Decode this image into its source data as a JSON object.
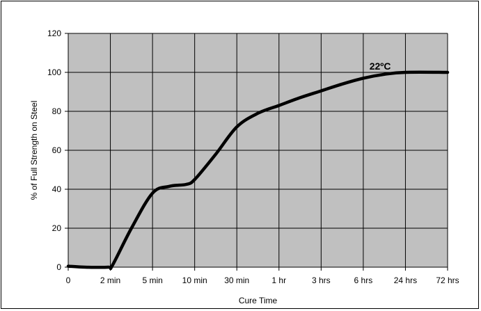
{
  "chart_data": {
    "type": "line",
    "xlabel": "Cure Time",
    "ylabel": "% of Full Strength on Steel",
    "ylim": [
      0,
      120
    ],
    "yticks": [
      0,
      20,
      40,
      60,
      80,
      100,
      120
    ],
    "x_categories": [
      "0",
      "2 min",
      "5 min",
      "10 min",
      "30 min",
      "1 hr",
      "3 hrs",
      "6 hrs",
      "24 hrs",
      "72 hrs"
    ],
    "grid": true,
    "plot_background": "#c0c0c0",
    "line_color": "#000000",
    "series": [
      {
        "name": "22ºC",
        "points": [
          {
            "x": 0,
            "y": 0.5
          },
          {
            "x": 0.4,
            "y": 0
          },
          {
            "x": 0.95,
            "y": 0
          },
          {
            "x": 1.05,
            "y": 1
          },
          {
            "x": 1.5,
            "y": 20
          },
          {
            "x": 2.0,
            "y": 38
          },
          {
            "x": 2.4,
            "y": 41.5
          },
          {
            "x": 2.8,
            "y": 42.5
          },
          {
            "x": 3.0,
            "y": 45
          },
          {
            "x": 3.5,
            "y": 58
          },
          {
            "x": 4.0,
            "y": 72
          },
          {
            "x": 4.5,
            "y": 79
          },
          {
            "x": 5.0,
            "y": 83
          },
          {
            "x": 5.5,
            "y": 87
          },
          {
            "x": 6.0,
            "y": 90.5
          },
          {
            "x": 6.5,
            "y": 94
          },
          {
            "x": 7.0,
            "y": 97
          },
          {
            "x": 7.5,
            "y": 99
          },
          {
            "x": 8.0,
            "y": 100
          },
          {
            "x": 9.0,
            "y": 100
          }
        ]
      }
    ],
    "annotations": [
      {
        "text": "22ºC",
        "x": 7.4,
        "y": 101.5
      }
    ]
  }
}
